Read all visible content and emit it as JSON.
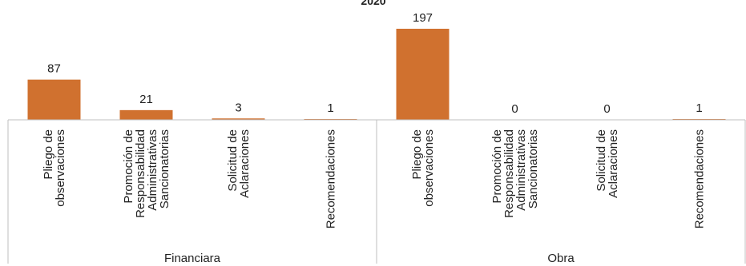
{
  "chart_data": {
    "type": "bar",
    "title": "2020",
    "bar_color": "#d0712f",
    "groups": [
      "Financiara",
      "Obra"
    ],
    "categories": [
      [
        "Pliego de",
        "observaciones"
      ],
      [
        "Promoción de",
        "Responsabilidad",
        "Administrativas",
        "Sancionatorias"
      ],
      [
        "Solicitud de",
        "Aclaraciones"
      ],
      [
        "Recomendaciones"
      ]
    ],
    "series": [
      {
        "group": "Financiara",
        "values": [
          87,
          21,
          3,
          1
        ]
      },
      {
        "group": "Obra",
        "values": [
          197,
          0,
          0,
          1
        ]
      }
    ],
    "ylim": [
      0,
      220
    ],
    "grid": false,
    "legend": "none"
  }
}
